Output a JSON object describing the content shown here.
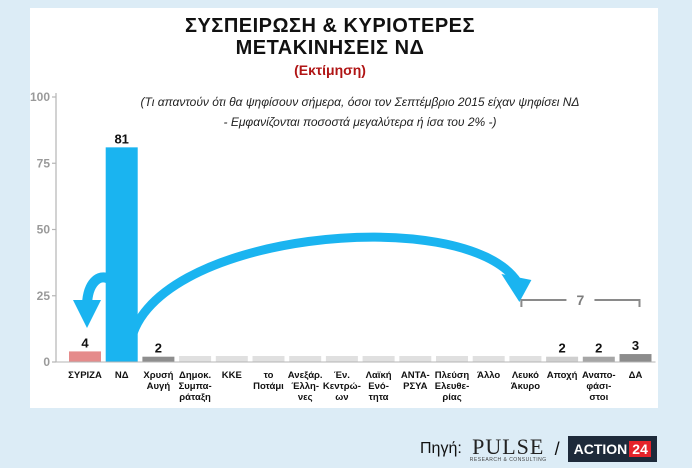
{
  "header": {
    "title_line1": "ΣΥΣΠΕΙΡΩΣΗ & ΚΥΡΙΟΤΕΡΕΣ",
    "title_line2": "ΜΕΤΑΚΙΝΗΣΕΙΣ ΝΔ",
    "subtitle": "(Εκτίμηση)",
    "note_line1": "(Τι απαντούν ότι θα ψηφίσουν σήμερα, όσοι τον Σεπτέμβριο 2015 είχαν ψηφίσει ΝΔ",
    "note_line2": "- Εμφανίζονται ποσοστά μεγαλύτερα ή ίσα του 2% -)"
  },
  "chart_data": {
    "type": "bar",
    "ylim": [
      0,
      100
    ],
    "yticks": [
      0,
      25,
      50,
      75,
      100
    ],
    "grid": false,
    "categories": [
      "ΣΥΡΙΖΑ",
      "ΝΔ",
      "Χρυσή Αυγή",
      "Δημοκ. Συμπαράταξη",
      "ΚΚΕ",
      "το Ποτάμι",
      "Ανεξάρ. Έλληνες",
      "Έν. Κεντρώων",
      "Λαϊκή Ενότητα",
      "ΑΝΤΑΡΣΥΑ",
      "Πλεύση Ελευθερίας",
      "Άλλο",
      "Λευκό Άκυρο",
      "Αποχή",
      "Αναποφάσιστοι",
      "ΔΑ"
    ],
    "tick_lines": [
      [
        "ΣΥΡΙΖΑ"
      ],
      [
        "ΝΔ"
      ],
      [
        "Χρυσή",
        "Αυγή"
      ],
      [
        "Δημοκ.",
        "Συμπα-",
        "ράταξη"
      ],
      [
        "ΚΚΕ"
      ],
      [
        "το",
        "Ποτάμι"
      ],
      [
        "Ανεξάρ.",
        "Έλλη-",
        "νες"
      ],
      [
        "Έν.",
        "Κεντρώ-",
        "ων"
      ],
      [
        "Λαϊκή",
        "Ενό-",
        "τητα"
      ],
      [
        "ΑΝΤΑ-",
        "ΡΣΥΑ"
      ],
      [
        "Πλεύση",
        "Ελευθε-",
        "ρίας"
      ],
      [
        "Άλλο"
      ],
      [
        "Λευκό",
        "Άκυρο"
      ],
      [
        "Αποχή"
      ],
      [
        "Αναπο-",
        "φάσι-",
        "στοι"
      ],
      [
        "ΔΑ"
      ]
    ],
    "values": [
      4,
      81,
      2,
      null,
      null,
      null,
      null,
      null,
      null,
      null,
      null,
      null,
      null,
      2,
      2,
      3
    ],
    "value_labels": [
      "4",
      "81",
      "2",
      "",
      "",
      "",
      "",
      "",
      "",
      "",
      "",
      "",
      "",
      "2",
      "2",
      "3"
    ],
    "bar_colors": [
      "#e58b8b",
      "#1ab4f0",
      "#8e8e8e",
      "#e0e0e0",
      "#e0e0e0",
      "#e0e0e0",
      "#e0e0e0",
      "#e0e0e0",
      "#e0e0e0",
      "#e0e0e0",
      "#e0e0e0",
      "#e0e0e0",
      "#e0e0e0",
      "#cfcfcf",
      "#a6a6a6",
      "#8c8c8c"
    ],
    "group_bracket": {
      "from": "Λευκό Άκυρο",
      "to": "ΔΑ",
      "label": "7"
    },
    "arrows": [
      {
        "from": "ΝΔ",
        "to": "ΣΥΡΙΖΑ",
        "color": "#1ab4f0"
      },
      {
        "from": "ΝΔ",
        "to": "Λευκό Άκυρο",
        "color": "#1ab4f0"
      }
    ]
  },
  "footer": {
    "source_label": "Πηγή:",
    "pulse_text": "PULSE",
    "pulse_sub": "RESEARCH & CONSULTING",
    "slash": "/",
    "action_text": "ACTION",
    "action_num": "24"
  },
  "colors": {
    "background": "#dcecf6",
    "panel": "#ffffff",
    "accent": "#1ab4f0",
    "subtitle": "#b01515"
  }
}
